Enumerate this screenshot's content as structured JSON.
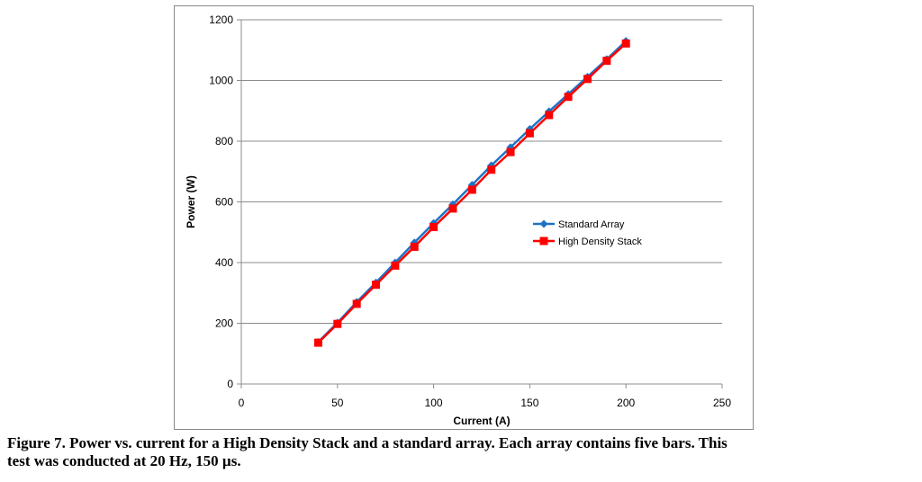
{
  "chart_data": {
    "type": "line",
    "xlabel": "Current (A)",
    "ylabel": "Power (W)",
    "xlim": [
      0,
      250
    ],
    "ylim": [
      0,
      1200
    ],
    "x_ticks": [
      0,
      50,
      100,
      150,
      200,
      250
    ],
    "y_ticks": [
      0,
      200,
      400,
      600,
      800,
      1000,
      1200
    ],
    "grid": "horizontal",
    "legend_position": "right-center",
    "series": [
      {
        "name": "Standard Array",
        "color": "#1f73c6",
        "marker": "diamond",
        "x": [
          40,
          50,
          60,
          70,
          80,
          90,
          100,
          110,
          120,
          130,
          140,
          150,
          160,
          170,
          180,
          190,
          200
        ],
        "y": [
          138,
          202,
          270,
          334,
          400,
          466,
          530,
          592,
          656,
          720,
          780,
          840,
          898,
          955,
          1012,
          1070,
          1130
        ]
      },
      {
        "name": "High Density Stack",
        "color": "#ff0000",
        "marker": "square",
        "x": [
          40,
          50,
          60,
          70,
          80,
          90,
          100,
          110,
          120,
          130,
          140,
          150,
          160,
          170,
          180,
          190,
          200
        ],
        "y": [
          136,
          198,
          264,
          327,
          390,
          452,
          517,
          578,
          640,
          706,
          764,
          826,
          886,
          946,
          1005,
          1065,
          1122
        ]
      }
    ]
  },
  "caption": {
    "line1": "Figure 7.  Power vs. current for a High Density Stack and a standard array.  Each array contains five bars.  This",
    "line2": "test was conducted at 20 Hz, 150 µs."
  }
}
